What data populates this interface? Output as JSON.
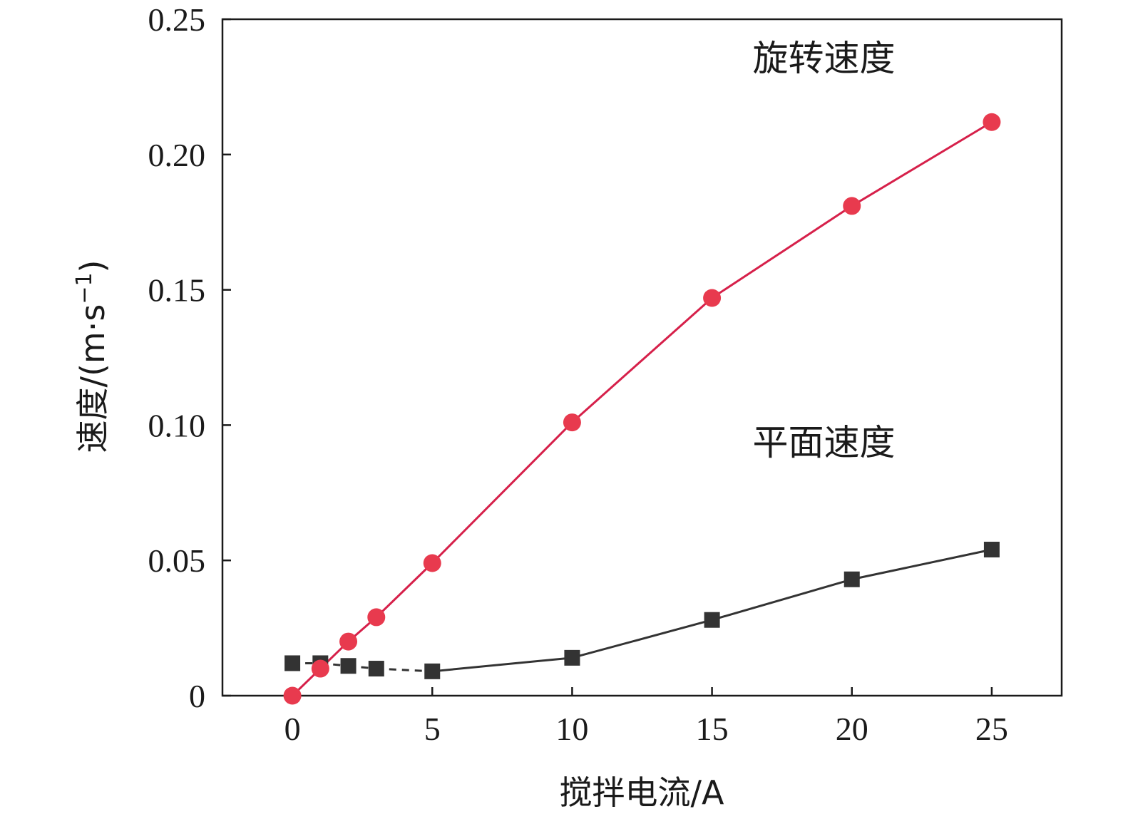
{
  "chart_data": {
    "type": "line",
    "xlabel": "搅拌电流/A",
    "ylabel": "速度/(m·s",
    "ylabel_sup": "−1",
    "ylabel_close": ")",
    "xlim": [
      -2.5,
      27.5
    ],
    "ylim": [
      0,
      0.25
    ],
    "x_ticks": [
      0,
      5,
      10,
      15,
      20,
      25
    ],
    "x_tick_labels": [
      "0",
      "5",
      "10",
      "15",
      "20",
      "25"
    ],
    "y_ticks": [
      0,
      0.05,
      0.1,
      0.15,
      0.2,
      0.25
    ],
    "y_tick_labels": [
      "0",
      "0.05",
      "0.10",
      "0.15",
      "0.20",
      "0.25"
    ],
    "grid": false,
    "legend": "none",
    "series": [
      {
        "marker": "square",
        "color": "#333333",
        "x": [
          0,
          1,
          2,
          3,
          5,
          10,
          15,
          20,
          25
        ],
        "y": [
          0.012,
          0.012,
          0.011,
          0.01,
          0.009,
          0.014,
          0.028,
          0.043,
          0.054
        ],
        "dash_until_x": 5
      },
      {
        "marker": "circle",
        "color": "#e83a4e",
        "line_color": "#d6204a",
        "x": [
          0,
          1,
          2,
          3,
          5,
          10,
          15,
          20,
          25
        ],
        "y": [
          0.0,
          0.01,
          0.02,
          0.029,
          0.049,
          0.101,
          0.147,
          0.181,
          0.212
        ]
      }
    ],
    "annotations": [
      {
        "text": "旋转速度",
        "x": 19,
        "y": 0.231
      },
      {
        "text": "平面速度",
        "x": 19,
        "y": 0.089
      }
    ]
  }
}
